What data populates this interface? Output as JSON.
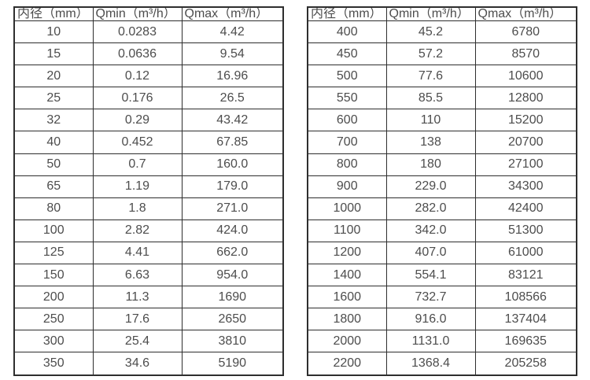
{
  "page": {
    "background": "#ffffff",
    "border_color": "#2e2e2e",
    "text_color": "#4d4d4d"
  },
  "tables": [
    {
      "name": "small-diameter-flow-table",
      "headers": [
        "内径（mm）",
        "Qmin（m³/h）",
        "Qmax（m³/h）"
      ],
      "rows": [
        [
          "10",
          "0.0283",
          "4.42"
        ],
        [
          "15",
          "0.0636",
          "9.54"
        ],
        [
          "20",
          "0.12",
          "16.96"
        ],
        [
          "25",
          "0.176",
          "26.5"
        ],
        [
          "32",
          "0.29",
          "43.42"
        ],
        [
          "40",
          "0.452",
          "67.85"
        ],
        [
          "50",
          "0.7",
          "160.0"
        ],
        [
          "65",
          "1.19",
          "179.0"
        ],
        [
          "80",
          "1.8",
          "271.0"
        ],
        [
          "100",
          "2.82",
          "424.0"
        ],
        [
          "125",
          "4.41",
          "662.0"
        ],
        [
          "150",
          "6.63",
          "954.0"
        ],
        [
          "200",
          "11.3",
          "1690"
        ],
        [
          "250",
          "17.6",
          "2650"
        ],
        [
          "300",
          "25.4",
          "3810"
        ],
        [
          "350",
          "34.6",
          "5190"
        ]
      ]
    },
    {
      "name": "large-diameter-flow-table",
      "headers": [
        "内径（mm）",
        "Qmin（m³/h）",
        "Qmax（m³/h）"
      ],
      "rows": [
        [
          "400",
          "45.2",
          "6780"
        ],
        [
          "450",
          "57.2",
          "8570"
        ],
        [
          "500",
          "77.6",
          "10600"
        ],
        [
          "550",
          "85.5",
          "12800"
        ],
        [
          "600",
          "110",
          "15200"
        ],
        [
          "700",
          "138",
          "20700"
        ],
        [
          "800",
          "180",
          "27100"
        ],
        [
          "900",
          "229.0",
          "34300"
        ],
        [
          "1000",
          "282.0",
          "42400"
        ],
        [
          "1100",
          "342.0",
          "51300"
        ],
        [
          "1200",
          "407.0",
          "61000"
        ],
        [
          "1400",
          "554.1",
          "83121"
        ],
        [
          "1600",
          "732.7",
          "108566"
        ],
        [
          "1800",
          "916.0",
          "137404"
        ],
        [
          "2000",
          "1131.0",
          "169635"
        ],
        [
          "2200",
          "1368.4",
          "205258"
        ]
      ]
    }
  ]
}
